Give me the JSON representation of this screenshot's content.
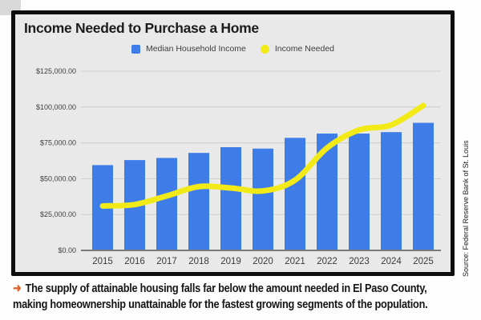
{
  "card": {
    "title": "Income Needed to Purchase a Home",
    "legend": [
      {
        "label": "Median Household Income",
        "color": "#3e7ce8",
        "marker": "square"
      },
      {
        "label": "Income Needed",
        "color": "#f2ea17",
        "marker": "circle"
      }
    ]
  },
  "source_note": "Source: Federal Reserve Bank of St. Louis",
  "caption": {
    "arrow": "➜",
    "arrow_color": "#e2622b",
    "line1": "The supply of attainable housing falls far below the amount needed in El Paso County,",
    "line2": "making homeownership unattainable for the fastest growing segments of the population."
  },
  "chart_data": {
    "type": "bar",
    "title": "Income Needed to Purchase a Home",
    "categories": [
      "2015",
      "2016",
      "2017",
      "2018",
      "2019",
      "2020",
      "2021",
      "2022",
      "2023",
      "2024",
      "2025"
    ],
    "series": [
      {
        "name": "Median Household Income",
        "type": "bar",
        "color": "#3e7ce8",
        "values": [
          59500,
          63000,
          64500,
          68000,
          72000,
          71000,
          78500,
          81500,
          81500,
          82500,
          89000
        ]
      },
      {
        "name": "Income Needed",
        "type": "line",
        "color": "#f2ea17",
        "values": [
          31000,
          32000,
          38000,
          44500,
          43500,
          41500,
          49000,
          71500,
          84000,
          87500,
          101000
        ]
      }
    ],
    "xlabel": "",
    "ylabel": "",
    "ylim": [
      0,
      125000
    ],
    "ytick_step": 25000,
    "ytick_labels": [
      "$0.00",
      "$25,000.00",
      "$50,000.00",
      "$75,000.00",
      "$100,000.00",
      "$125,000.00"
    ],
    "grid": true,
    "legend_position": "top",
    "axis_label_color": "#3f3f3f",
    "gridline_color": "#cdcdcd",
    "baseline_color": "#7a7a7a"
  }
}
